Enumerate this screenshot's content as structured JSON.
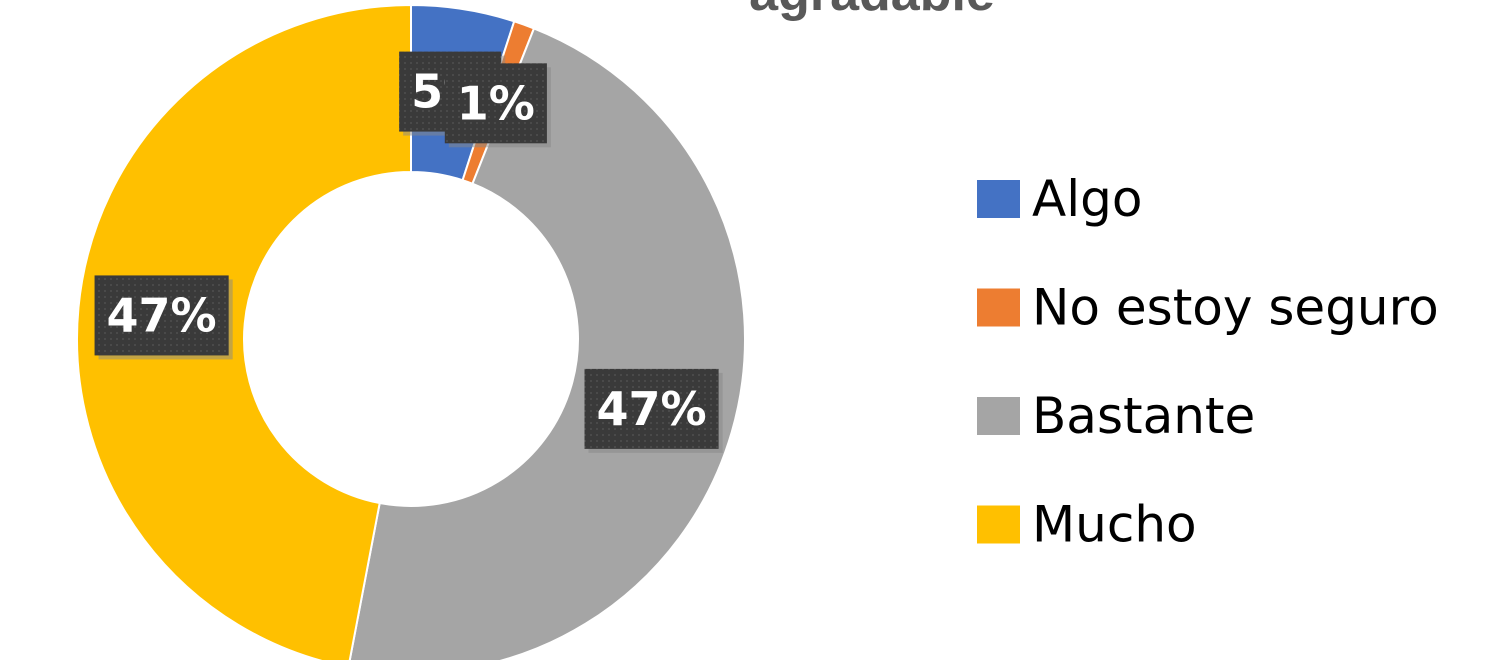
{
  "chart_data": {
    "type": "donut",
    "title": "agradable",
    "categories": [
      "Algo",
      "No estoy seguro",
      "Bastante",
      "Mucho"
    ],
    "values": [
      5,
      1,
      47,
      47
    ],
    "value_labels": [
      "5%",
      "1%",
      "47%",
      "47%"
    ],
    "colors": [
      "#4472c4",
      "#ed7d31",
      "#a5a5a5",
      "#ffc000"
    ],
    "legend": "right"
  }
}
